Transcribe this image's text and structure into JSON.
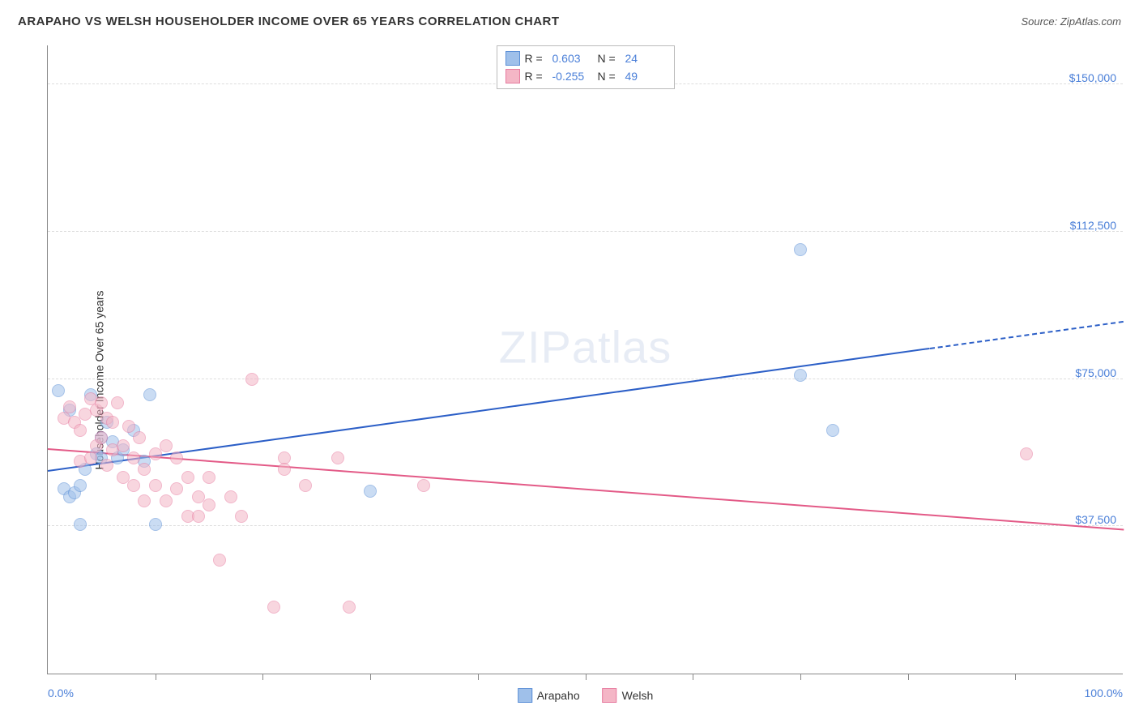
{
  "title": "ARAPAHO VS WELSH HOUSEHOLDER INCOME OVER 65 YEARS CORRELATION CHART",
  "source": "Source: ZipAtlas.com",
  "ylabel": "Householder Income Over 65 years",
  "watermark_zip": "ZIP",
  "watermark_atlas": "atlas",
  "chart": {
    "type": "scatter",
    "xlim": [
      0,
      100
    ],
    "ylim": [
      0,
      160000
    ],
    "x_tick_positions": [
      10,
      20,
      30,
      40,
      50,
      60,
      70,
      80,
      90
    ],
    "x_left_label": "0.0%",
    "x_right_label": "100.0%",
    "y_gridlines": [
      {
        "value": 37500,
        "label": "$37,500"
      },
      {
        "value": 75000,
        "label": "$75,000"
      },
      {
        "value": 112500,
        "label": "$112,500"
      },
      {
        "value": 150000,
        "label": "$150,000"
      }
    ],
    "background_color": "#ffffff",
    "grid_color": "#dddddd",
    "axis_color": "#888888",
    "label_color": "#4a7fd8",
    "point_radius": 8,
    "point_opacity": 0.55,
    "series": [
      {
        "name": "Arapaho",
        "fill_color": "#9fc0ea",
        "stroke_color": "#5b8fd6",
        "line_color": "#2c5fc7",
        "r_label": "R =",
        "r_value": "0.603",
        "n_label": "N =",
        "n_value": "24",
        "trend": {
          "x1": 0,
          "y1": 52000,
          "x2": 100,
          "y2": 90000,
          "dash_from_x": 82
        },
        "points": [
          [
            1,
            72000
          ],
          [
            1.5,
            47000
          ],
          [
            2,
            45000
          ],
          [
            2.5,
            46000
          ],
          [
            2,
            67000
          ],
          [
            3,
            48000
          ],
          [
            3,
            38000
          ],
          [
            3.5,
            52000
          ],
          [
            4,
            71000
          ],
          [
            4.5,
            56000
          ],
          [
            5,
            60000
          ],
          [
            5,
            55000
          ],
          [
            5.5,
            64000
          ],
          [
            6,
            59000
          ],
          [
            6.5,
            55000
          ],
          [
            7,
            57000
          ],
          [
            8,
            62000
          ],
          [
            9,
            54000
          ],
          [
            9.5,
            71000
          ],
          [
            10,
            38000
          ],
          [
            30,
            46500
          ],
          [
            70,
            76000
          ],
          [
            70,
            108000
          ],
          [
            73,
            62000
          ]
        ]
      },
      {
        "name": "Welsh",
        "fill_color": "#f4b6c6",
        "stroke_color": "#e77ca0",
        "line_color": "#e35a87",
        "r_label": "R =",
        "r_value": "-0.255",
        "n_label": "N =",
        "n_value": "49",
        "trend": {
          "x1": 0,
          "y1": 57500,
          "x2": 100,
          "y2": 37000,
          "dash_from_x": null
        },
        "points": [
          [
            1.5,
            65000
          ],
          [
            2,
            68000
          ],
          [
            2.5,
            64000
          ],
          [
            3,
            62000
          ],
          [
            3,
            54000
          ],
          [
            3.5,
            66000
          ],
          [
            4,
            70000
          ],
          [
            4,
            55000
          ],
          [
            4.5,
            58000
          ],
          [
            4.5,
            67000
          ],
          [
            5,
            69000
          ],
          [
            5,
            60000
          ],
          [
            5.5,
            65000
          ],
          [
            5.5,
            53000
          ],
          [
            6,
            57000
          ],
          [
            6,
            64000
          ],
          [
            6.5,
            69000
          ],
          [
            7,
            58000
          ],
          [
            7,
            50000
          ],
          [
            7.5,
            63000
          ],
          [
            8,
            55000
          ],
          [
            8,
            48000
          ],
          [
            8.5,
            60000
          ],
          [
            9,
            52000
          ],
          [
            9,
            44000
          ],
          [
            10,
            56000
          ],
          [
            10,
            48000
          ],
          [
            11,
            58000
          ],
          [
            11,
            44000
          ],
          [
            12,
            55000
          ],
          [
            12,
            47000
          ],
          [
            13,
            40000
          ],
          [
            13,
            50000
          ],
          [
            14,
            45000
          ],
          [
            14,
            40000
          ],
          [
            15,
            50000
          ],
          [
            15,
            43000
          ],
          [
            16,
            29000
          ],
          [
            17,
            45000
          ],
          [
            18,
            40000
          ],
          [
            19,
            75000
          ],
          [
            21,
            17000
          ],
          [
            22,
            55000
          ],
          [
            22,
            52000
          ],
          [
            24,
            48000
          ],
          [
            27,
            55000
          ],
          [
            28,
            17000
          ],
          [
            35,
            48000
          ],
          [
            91,
            56000
          ]
        ]
      }
    ]
  },
  "legend": {
    "arapaho": "Arapaho",
    "welsh": "Welsh"
  }
}
